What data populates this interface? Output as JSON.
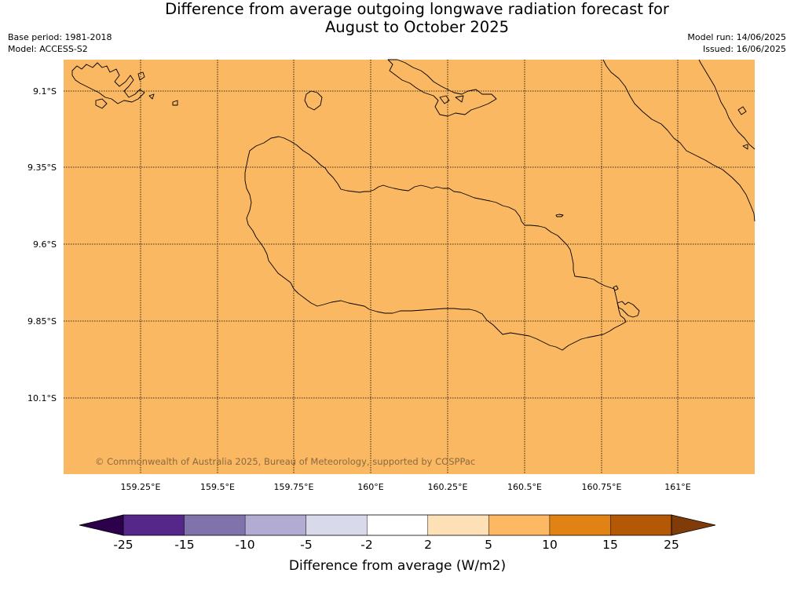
{
  "title_line1": "Difference from average outgoing longwave radiation forecast for",
  "title_line2": "August to October 2025",
  "base_period": "Base period: 1981-2018",
  "model": "Model: ACCESS-S2",
  "model_run": "Model run: 14/06/2025",
  "issued": "Issued: 16/06/2025",
  "map": {
    "fill_color": "#fbb862",
    "lat_labels": [
      "9.1°S",
      "9.35°S",
      "9.6°S",
      "9.85°S",
      "10.1°S"
    ],
    "lon_labels": [
      "159.25°E",
      "159.5°E",
      "159.75°E",
      "160°E",
      "160.25°E",
      "160.5°E",
      "160.75°E",
      "161°E"
    ],
    "copyright": "© Commonwealth of Australia 2025, Bureau of Meteorology, supported by COSPPac"
  },
  "colorbar": {
    "title": "Difference from average (W/m2)",
    "ticks": [
      "-25",
      "-15",
      "-10",
      "-5",
      "-2",
      "2",
      "5",
      "10",
      "15",
      "25"
    ],
    "colors": [
      "#542788",
      "#8073ac",
      "#b2abd2",
      "#d8daeb",
      "#ffffff",
      "#fee0b6",
      "#fdb863",
      "#e08214",
      "#b35806"
    ],
    "under_color": "#2d004b",
    "over_color": "#7f3b08"
  }
}
